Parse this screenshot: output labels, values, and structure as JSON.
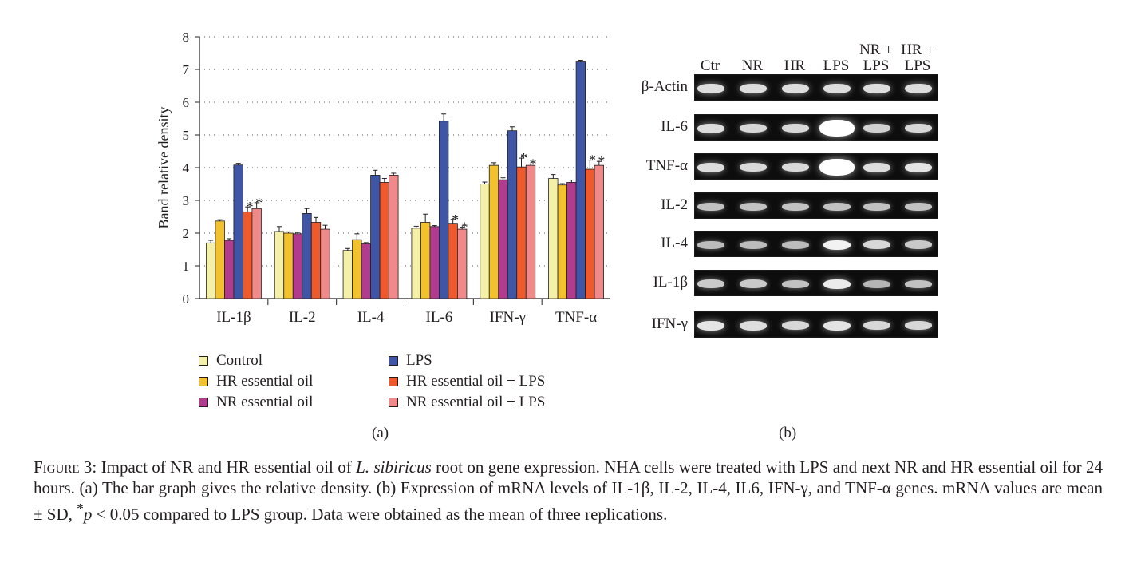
{
  "chart_data": {
    "type": "bar",
    "title": "",
    "xlabel": "",
    "ylabel": "Band relative density",
    "ylim": [
      0,
      8
    ],
    "yticks": [
      "0",
      "1",
      "2",
      "3",
      "4",
      "5",
      "6",
      "7",
      "8"
    ],
    "grid": "dotted horizontal",
    "categories": [
      "IL-1β",
      "IL-2",
      "IL-4",
      "IL-6",
      "IFN-γ",
      "TNF-α"
    ],
    "series": [
      {
        "name": "Control",
        "color": "#f5f0a8",
        "values": [
          1.7,
          2.05,
          1.47,
          2.15,
          3.5,
          3.67
        ],
        "errors": [
          0.08,
          0.15,
          0.06,
          0.06,
          0.06,
          0.12
        ]
      },
      {
        "name": "HR essential oil",
        "color": "#f2c12e",
        "values": [
          2.37,
          2.0,
          1.8,
          2.33,
          4.07,
          3.47
        ],
        "errors": [
          0.04,
          0.04,
          0.18,
          0.25,
          0.08,
          0.04
        ]
      },
      {
        "name": "NR essential oil",
        "color": "#b13c8e",
        "values": [
          1.78,
          1.98,
          1.67,
          2.2,
          3.63,
          3.55
        ],
        "errors": [
          0.05,
          0.04,
          0.04,
          0.03,
          0.06,
          0.07
        ]
      },
      {
        "name": "LPS",
        "color": "#3f56a6",
        "values": [
          4.08,
          2.6,
          3.77,
          5.42,
          5.13,
          7.23
        ],
        "errors": [
          0.05,
          0.15,
          0.15,
          0.22,
          0.12,
          0.05
        ]
      },
      {
        "name": "HR essential oil + LPS",
        "color": "#ee5a2b",
        "values": [
          2.65,
          2.33,
          3.55,
          2.3,
          4.02,
          3.95
        ],
        "errors": [
          0.15,
          0.15,
          0.12,
          0.12,
          0.27,
          0.28
        ]
      },
      {
        "name": "NR essential oil + LPS",
        "color": "#f08a8a",
        "values": [
          2.75,
          2.12,
          3.77,
          2.12,
          4.07,
          4.07
        ],
        "errors": [
          0.18,
          0.12,
          0.06,
          0.06,
          0.04,
          0.12
        ]
      }
    ],
    "significance_mark": "*",
    "significant": {
      "HR essential oil + LPS": [
        "IL-1β",
        "IL-6",
        "IFN-γ",
        "TNF-α"
      ],
      "NR essential oil + LPS": [
        "IL-1β",
        "IL-6",
        "IFN-γ",
        "TNF-α"
      ]
    },
    "legend_placement": "bottom, two columns"
  },
  "legend": [
    {
      "label": "Control",
      "color": "#f5f0a8"
    },
    {
      "label": "HR essential oil",
      "color": "#f2c12e"
    },
    {
      "label": "NR essential oil",
      "color": "#b13c8e"
    },
    {
      "label": "LPS",
      "color": "#3f56a6"
    },
    {
      "label": "HR essential oil + LPS",
      "color": "#ee5a2b"
    },
    {
      "label": "NR essential oil + LPS",
      "color": "#f08a8a"
    }
  ],
  "panels": {
    "a": "(a)",
    "b": "(b)"
  },
  "gel": {
    "lanes": [
      {
        "line1": "",
        "line2": "Ctr"
      },
      {
        "line1": "",
        "line2": "NR"
      },
      {
        "line1": "",
        "line2": "HR"
      },
      {
        "line1": "",
        "line2": "LPS"
      },
      {
        "line1": "NR +",
        "line2": "LPS"
      },
      {
        "line1": "HR +",
        "line2": "LPS"
      }
    ],
    "rows": [
      {
        "label": "β-Actin",
        "intensity": [
          0.75,
          0.75,
          0.75,
          0.75,
          0.75,
          0.75
        ]
      },
      {
        "label": "IL-6",
        "intensity": [
          0.75,
          0.7,
          0.7,
          1.0,
          0.65,
          0.7
        ]
      },
      {
        "label": "TNF-α",
        "intensity": [
          0.75,
          0.72,
          0.72,
          1.0,
          0.75,
          0.8
        ]
      },
      {
        "label": "IL-2",
        "intensity": [
          0.55,
          0.55,
          0.55,
          0.55,
          0.55,
          0.55
        ]
      },
      {
        "label": "IL-4",
        "intensity": [
          0.5,
          0.5,
          0.5,
          0.9,
          0.7,
          0.6
        ]
      },
      {
        "label": "IL-1β",
        "intensity": [
          0.6,
          0.6,
          0.55,
          0.85,
          0.45,
          0.55
        ]
      },
      {
        "label": "IFN-γ",
        "intensity": [
          0.8,
          0.75,
          0.7,
          0.8,
          0.7,
          0.7
        ]
      }
    ]
  },
  "caption": {
    "figure": "Figure 3:",
    "part1": " Impact of NR and HR essential oil of ",
    "species": "L. sibiricus",
    "part2": " root on gene expression. NHA cells were treated with LPS and next NR and HR essential oil for 24 hours. (a) The bar graph gives the relative density. (b) Expression of mRNA levels of IL-1β, IL-2, IL-4, IL6, IFN-γ, and TNF-α genes. mRNA values are mean ± SD, ",
    "star": "*",
    "p": "p",
    "part3": " < 0.05 compared to LPS group. Data were obtained as the mean of three replications."
  }
}
